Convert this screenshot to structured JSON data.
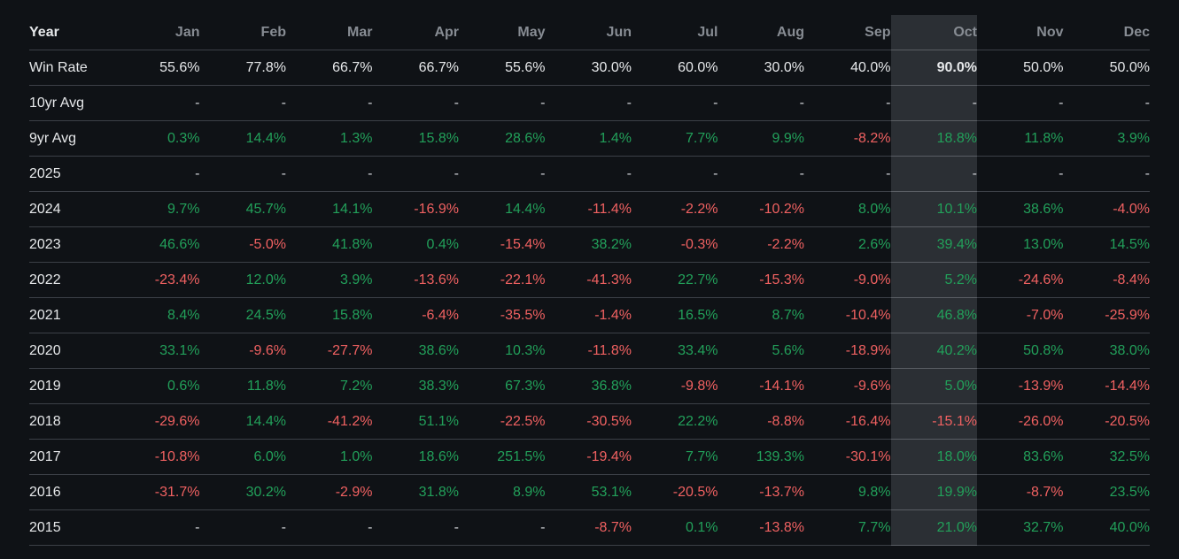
{
  "page": {
    "background": "#0f1216"
  },
  "colors": {
    "positive": "#22a05a",
    "negative": "#f06161",
    "neutral_text": "#e6e8ea",
    "header_text": "#878c93",
    "highlight_column_bg": "#2b2f34",
    "separator": "#3c4047"
  },
  "table": {
    "columns": [
      "Year",
      "Jan",
      "Feb",
      "Mar",
      "Apr",
      "May",
      "Jun",
      "Jul",
      "Aug",
      "Sep",
      "Oct",
      "Nov",
      "Dec"
    ],
    "highlighted_column": "Oct",
    "rows": [
      {
        "label": "Win Rate",
        "style": "plain",
        "values": [
          "55.6%",
          "77.8%",
          "66.7%",
          "66.7%",
          "55.6%",
          "30.0%",
          "60.0%",
          "30.0%",
          "40.0%",
          "90.0%",
          "50.0%",
          "50.0%"
        ]
      },
      {
        "label": "10yr Avg",
        "style": "signed",
        "values": [
          "-",
          "-",
          "-",
          "-",
          "-",
          "-",
          "-",
          "-",
          "-",
          "-",
          "-",
          "-"
        ]
      },
      {
        "label": "9yr Avg",
        "style": "signed",
        "values": [
          "0.3%",
          "14.4%",
          "1.3%",
          "15.8%",
          "28.6%",
          "1.4%",
          "7.7%",
          "9.9%",
          "-8.2%",
          "18.8%",
          "11.8%",
          "3.9%"
        ]
      },
      {
        "label": "2025",
        "style": "signed",
        "values": [
          "-",
          "-",
          "-",
          "-",
          "-",
          "-",
          "-",
          "-",
          "-",
          "-",
          "-",
          "-"
        ]
      },
      {
        "label": "2024",
        "style": "signed",
        "values": [
          "9.7%",
          "45.7%",
          "14.1%",
          "-16.9%",
          "14.4%",
          "-11.4%",
          "-2.2%",
          "-10.2%",
          "8.0%",
          "10.1%",
          "38.6%",
          "-4.0%"
        ]
      },
      {
        "label": "2023",
        "style": "signed",
        "values": [
          "46.6%",
          "-5.0%",
          "41.8%",
          "0.4%",
          "-15.4%",
          "38.2%",
          "-0.3%",
          "-2.2%",
          "2.6%",
          "39.4%",
          "13.0%",
          "14.5%"
        ]
      },
      {
        "label": "2022",
        "style": "signed",
        "values": [
          "-23.4%",
          "12.0%",
          "3.9%",
          "-13.6%",
          "-22.1%",
          "-41.3%",
          "22.7%",
          "-15.3%",
          "-9.0%",
          "5.2%",
          "-24.6%",
          "-8.4%"
        ]
      },
      {
        "label": "2021",
        "style": "signed",
        "values": [
          "8.4%",
          "24.5%",
          "15.8%",
          "-6.4%",
          "-35.5%",
          "-1.4%",
          "16.5%",
          "8.7%",
          "-10.4%",
          "46.8%",
          "-7.0%",
          "-25.9%"
        ]
      },
      {
        "label": "2020",
        "style": "signed",
        "values": [
          "33.1%",
          "-9.6%",
          "-27.7%",
          "38.6%",
          "10.3%",
          "-11.8%",
          "33.4%",
          "5.6%",
          "-18.9%",
          "40.2%",
          "50.8%",
          "38.0%"
        ]
      },
      {
        "label": "2019",
        "style": "signed",
        "values": [
          "0.6%",
          "11.8%",
          "7.2%",
          "38.3%",
          "67.3%",
          "36.8%",
          "-9.8%",
          "-14.1%",
          "-9.6%",
          "5.0%",
          "-13.9%",
          "-14.4%"
        ]
      },
      {
        "label": "2018",
        "style": "signed",
        "values": [
          "-29.6%",
          "14.4%",
          "-41.2%",
          "51.1%",
          "-22.5%",
          "-30.5%",
          "22.2%",
          "-8.8%",
          "-16.4%",
          "-15.1%",
          "-26.0%",
          "-20.5%"
        ]
      },
      {
        "label": "2017",
        "style": "signed",
        "values": [
          "-10.8%",
          "6.0%",
          "1.0%",
          "18.6%",
          "251.5%",
          "-19.4%",
          "7.7%",
          "139.3%",
          "-30.1%",
          "18.0%",
          "83.6%",
          "32.5%"
        ]
      },
      {
        "label": "2016",
        "style": "signed",
        "values": [
          "-31.7%",
          "30.2%",
          "-2.9%",
          "31.8%",
          "8.9%",
          "53.1%",
          "-20.5%",
          "-13.7%",
          "9.8%",
          "19.9%",
          "-8.7%",
          "23.5%"
        ]
      },
      {
        "label": "2015",
        "style": "signed",
        "values": [
          "-",
          "-",
          "-",
          "-",
          "-",
          "-8.7%",
          "0.1%",
          "-13.8%",
          "7.7%",
          "21.0%",
          "32.7%",
          "40.0%"
        ]
      }
    ]
  }
}
